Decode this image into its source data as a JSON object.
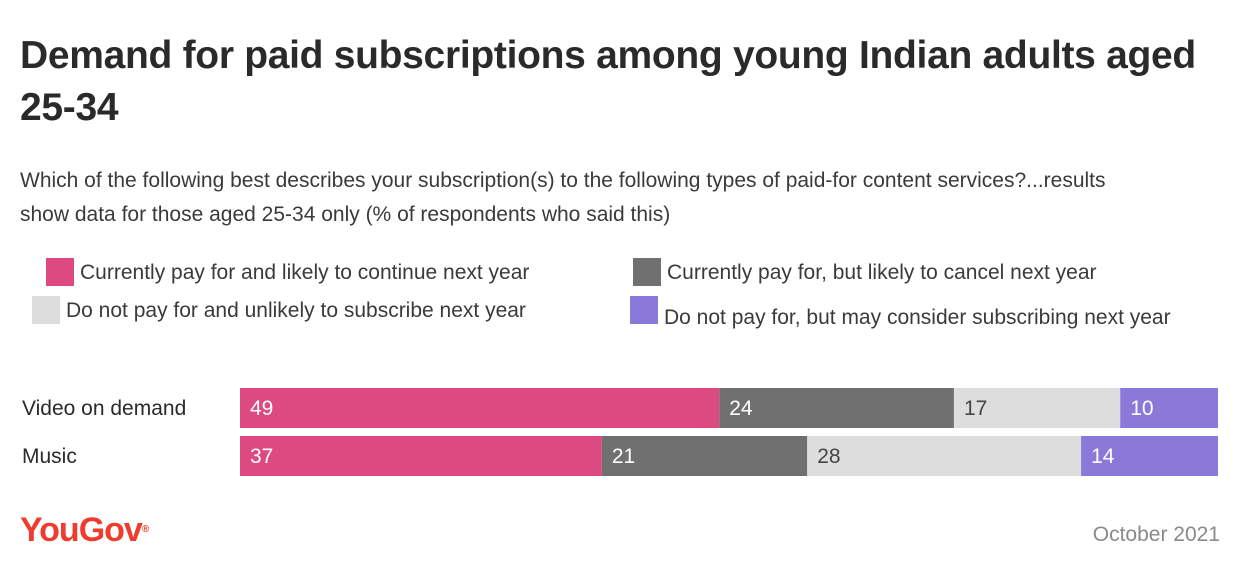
{
  "logo": "YouGov",
  "date": "October 2021",
  "colors": {
    "continue": "#dd4a81",
    "cancel": "#707070",
    "unlikely": "#dddddd",
    "consider": "#8b79d9",
    "logo": "#f03c2e"
  },
  "chart_data": {
    "type": "bar",
    "orientation": "horizontal",
    "stacked": true,
    "title": "Demand for paid subscriptions among young Indian adults aged 25-34",
    "subtitle": "Which of the following best describes your subscription(s) to the following types of paid-for content services?...results show data for those aged 25-34 only (% of respondents who said this)",
    "categories": [
      "Video on demand",
      "Music"
    ],
    "series": [
      {
        "name": "Currently pay for and likely to continue next year",
        "color": "#dd4a81",
        "label_color": "#ffffff",
        "values": [
          49,
          37
        ]
      },
      {
        "name": "Currently pay for, but likely to cancel next year",
        "color": "#707070",
        "label_color": "#ffffff",
        "values": [
          24,
          21
        ]
      },
      {
        "name": "Do not pay for and unlikely to subscribe next year",
        "color": "#dddddd",
        "label_color": "#444444",
        "values": [
          17,
          28
        ]
      },
      {
        "name": "Do not pay for, but may consider subscribing next year",
        "color": "#8b79d9",
        "label_color": "#ffffff",
        "values": [
          10,
          14
        ]
      }
    ],
    "xlim": [
      0,
      100
    ],
    "legend_position": "top",
    "grid": false
  }
}
